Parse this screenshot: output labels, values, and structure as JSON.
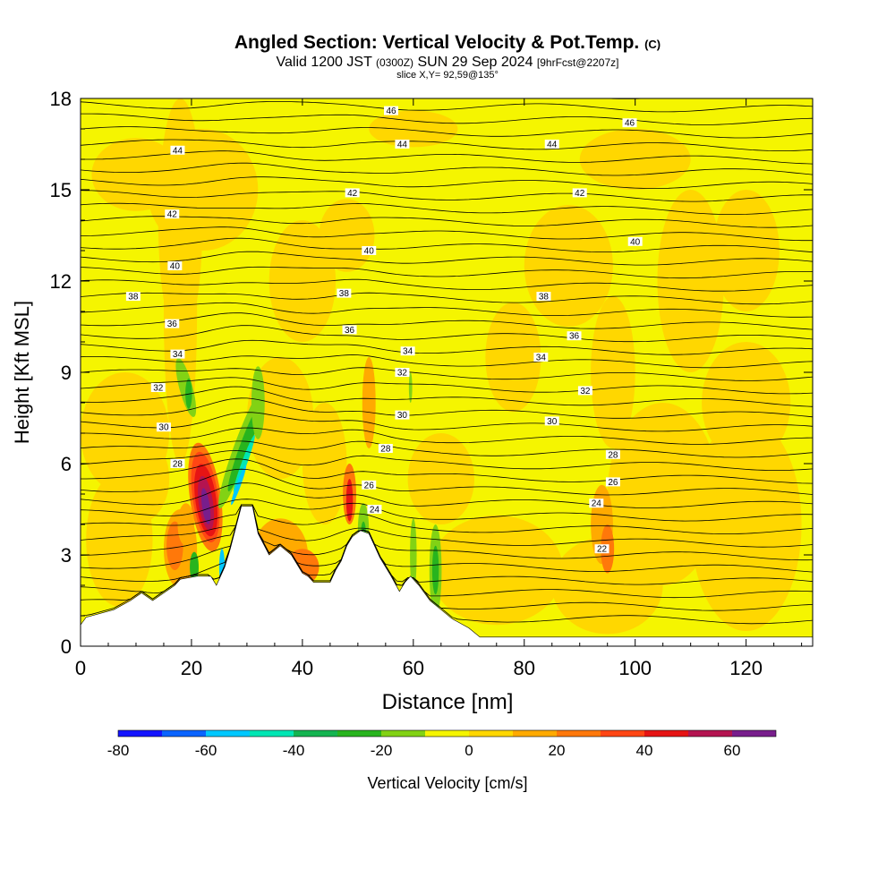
{
  "header": {
    "title_main": "Angled Section: Vertical Velocity & Pot.Temp.",
    "title_copyright": "(C)",
    "valid_prefix": "Valid 1200 JST",
    "valid_z": "(0300Z)",
    "valid_date": "SUN 29 Sep 2024",
    "valid_fcst": "[9hrFcst@2207z]",
    "slice": "slice X,Y= 92,59@135°"
  },
  "chart_data": {
    "type": "heatmap",
    "xlabel": "Distance [nm]",
    "ylabel": "Height [Kft MSL]",
    "xlim": [
      0,
      132
    ],
    "ylim": [
      0,
      18
    ],
    "xticks": [
      0,
      20,
      40,
      60,
      80,
      100,
      120
    ],
    "yticks": [
      0,
      3,
      6,
      9,
      12,
      15,
      18
    ],
    "colorbar": {
      "label": "Vertical Velocity [cm/s]",
      "levels": [
        -80,
        -70,
        -60,
        -50,
        -40,
        -30,
        -20,
        -10,
        0,
        10,
        20,
        30,
        40,
        50,
        60,
        70
      ],
      "tick_labels": [
        -80,
        -60,
        -40,
        -20,
        0,
        20,
        40,
        60
      ],
      "colors": [
        "#1414ff",
        "#0a64ff",
        "#00c8ff",
        "#00e6b4",
        "#14b450",
        "#28b41e",
        "#82d214",
        "#f5f500",
        "#ffd700",
        "#ffaa00",
        "#ff780a",
        "#ff4614",
        "#e61414",
        "#b41450",
        "#781e8c"
      ]
    },
    "background_color": "#f5f500",
    "terrain": [
      [
        0,
        0.7
      ],
      [
        1,
        0.95
      ],
      [
        6,
        1.2
      ],
      [
        9,
        1.5
      ],
      [
        11,
        1.75
      ],
      [
        13,
        1.5
      ],
      [
        15,
        1.75
      ],
      [
        17,
        2.0
      ],
      [
        18,
        2.2
      ],
      [
        21,
        2.3
      ],
      [
        23.5,
        2.3
      ],
      [
        24.5,
        2.0
      ],
      [
        26,
        2.6
      ],
      [
        27,
        3.2
      ],
      [
        28,
        3.9
      ],
      [
        29,
        4.6
      ],
      [
        31,
        4.6
      ],
      [
        32,
        3.7
      ],
      [
        34,
        3.0
      ],
      [
        36,
        3.3
      ],
      [
        38,
        3.0
      ],
      [
        39,
        2.7
      ],
      [
        40,
        2.4
      ],
      [
        41,
        2.3
      ],
      [
        42,
        2.1
      ],
      [
        45,
        2.1
      ],
      [
        46,
        2.5
      ],
      [
        47,
        2.8
      ],
      [
        48,
        3.3
      ],
      [
        49,
        3.6
      ],
      [
        50.5,
        3.8
      ],
      [
        52,
        3.7
      ],
      [
        54,
        2.9
      ],
      [
        56,
        2.3
      ],
      [
        57.5,
        1.8
      ],
      [
        58.5,
        2.1
      ],
      [
        59.5,
        2.3
      ],
      [
        61,
        2.0
      ],
      [
        63,
        1.5
      ],
      [
        65,
        1.2
      ],
      [
        67,
        0.9
      ],
      [
        70,
        0.6
      ],
      [
        72,
        0.3
      ],
      [
        132,
        0.3
      ]
    ],
    "theta_contour_labels": [
      {
        "value": "46",
        "x": 56,
        "y": 17.6
      },
      {
        "value": "46",
        "x": 99,
        "y": 17.2
      },
      {
        "value": "44",
        "x": 17.5,
        "y": 16.3
      },
      {
        "value": "44",
        "x": 58,
        "y": 16.5
      },
      {
        "value": "44",
        "x": 85,
        "y": 16.5
      },
      {
        "value": "42",
        "x": 16.5,
        "y": 14.2
      },
      {
        "value": "42",
        "x": 49,
        "y": 14.9
      },
      {
        "value": "42",
        "x": 90,
        "y": 14.9
      },
      {
        "value": "40",
        "x": 17,
        "y": 12.5
      },
      {
        "value": "40",
        "x": 52,
        "y": 13.0
      },
      {
        "value": "40",
        "x": 100,
        "y": 13.3
      },
      {
        "value": "38",
        "x": 9.5,
        "y": 11.5
      },
      {
        "value": "38",
        "x": 47.5,
        "y": 11.6
      },
      {
        "value": "38",
        "x": 83.5,
        "y": 11.5
      },
      {
        "value": "36",
        "x": 16.5,
        "y": 10.6
      },
      {
        "value": "36",
        "x": 48.5,
        "y": 10.4
      },
      {
        "value": "36",
        "x": 89,
        "y": 10.2
      },
      {
        "value": "34",
        "x": 17.5,
        "y": 9.6
      },
      {
        "value": "34",
        "x": 59,
        "y": 9.7
      },
      {
        "value": "34",
        "x": 83,
        "y": 9.5
      },
      {
        "value": "32",
        "x": 14,
        "y": 8.5
      },
      {
        "value": "32",
        "x": 58,
        "y": 9.0
      },
      {
        "value": "32",
        "x": 91,
        "y": 8.4
      },
      {
        "value": "30",
        "x": 15,
        "y": 7.2
      },
      {
        "value": "30",
        "x": 58,
        "y": 7.6
      },
      {
        "value": "30",
        "x": 85,
        "y": 7.4
      },
      {
        "value": "28",
        "x": 17.5,
        "y": 6.0
      },
      {
        "value": "28",
        "x": 55,
        "y": 6.5
      },
      {
        "value": "28",
        "x": 96,
        "y": 6.3
      },
      {
        "value": "26",
        "x": 52,
        "y": 5.3
      },
      {
        "value": "26",
        "x": 96,
        "y": 5.4
      },
      {
        "value": "24",
        "x": 53,
        "y": 4.5
      },
      {
        "value": "24",
        "x": 93,
        "y": 4.7
      },
      {
        "value": "22",
        "x": 94,
        "y": 3.2
      }
    ]
  }
}
